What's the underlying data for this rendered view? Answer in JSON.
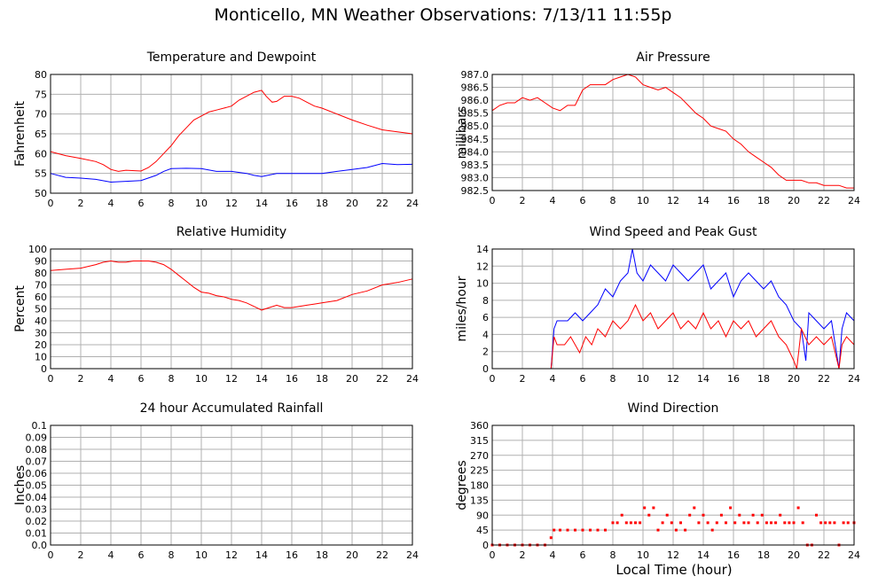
{
  "title": "Monticello, MN Weather Observations: 7/13/11 11:55p",
  "xaxis_label": "Local Time (hour)",
  "chart_data": [
    {
      "id": "temp",
      "type": "line",
      "title": "Temperature and Dewpoint",
      "ylabel": "Fahrenheit",
      "xlabel": "",
      "xlim": [
        0,
        24
      ],
      "ylim": [
        50,
        80
      ],
      "xticks": [
        "0",
        "2",
        "4",
        "6",
        "8",
        "10",
        "12",
        "14",
        "16",
        "18",
        "20",
        "22",
        "24"
      ],
      "yticks": [
        "50",
        "55",
        "60",
        "65",
        "70",
        "75",
        "80"
      ],
      "grid": true,
      "series": [
        {
          "color": "#ff0000",
          "x": [
            0,
            1,
            2,
            3,
            3.5,
            4,
            4.5,
            5,
            6,
            6.5,
            7,
            7.5,
            8,
            8.5,
            9,
            9.5,
            10,
            10.5,
            11,
            11.5,
            12,
            12.5,
            13,
            13.5,
            14,
            14.3,
            14.7,
            15,
            15.5,
            16,
            16.5,
            17,
            17.5,
            18,
            19,
            20,
            21,
            22,
            23,
            24
          ],
          "y": [
            60.5,
            59.5,
            58.8,
            58,
            57.2,
            56.0,
            55.5,
            55.8,
            55.6,
            56.5,
            58,
            60,
            62,
            64.5,
            66.5,
            68.5,
            69.5,
            70.5,
            71,
            71.5,
            72,
            73.5,
            74.5,
            75.5,
            76,
            74.5,
            73,
            73.2,
            74.5,
            74.5,
            74,
            73,
            72,
            71.5,
            70,
            68.5,
            67.2,
            66,
            65.5,
            65
          ]
        },
        {
          "color": "#0000ff",
          "x": [
            0,
            1,
            2,
            3,
            4,
            5,
            6,
            7,
            7.5,
            8,
            9,
            10,
            11,
            12,
            13,
            13.5,
            14,
            15,
            16,
            17,
            18,
            19,
            20,
            21,
            22,
            23,
            24
          ],
          "y": [
            55,
            54,
            53.8,
            53.5,
            52.8,
            53,
            53.2,
            54.5,
            55.5,
            56.2,
            56.3,
            56.2,
            55.5,
            55.5,
            55,
            54.5,
            54.2,
            55,
            55,
            55,
            55,
            55.5,
            56,
            56.5,
            57.5,
            57.2,
            57.3
          ]
        }
      ]
    },
    {
      "id": "pressure",
      "type": "line",
      "title": "Air Pressure",
      "ylabel": "millibars",
      "xlabel": "",
      "xlim": [
        0,
        24
      ],
      "ylim": [
        982.5,
        987.0
      ],
      "xticks": [
        "0",
        "2",
        "4",
        "6",
        "8",
        "10",
        "12",
        "14",
        "16",
        "18",
        "20",
        "22",
        "24"
      ],
      "yticks": [
        "982.5",
        "983.0",
        "983.5",
        "984.0",
        "984.5",
        "985.0",
        "985.5",
        "986.0",
        "986.5",
        "987.0"
      ],
      "grid": true,
      "series": [
        {
          "color": "#ff0000",
          "x": [
            0,
            0.5,
            1,
            1.5,
            2,
            2.5,
            3,
            3.5,
            4,
            4.5,
            5,
            5.5,
            6,
            6.5,
            7,
            7.5,
            8,
            8.5,
            9,
            9.5,
            10,
            10.5,
            11,
            11.5,
            12,
            12.5,
            13,
            13.5,
            14,
            14.5,
            15,
            15.5,
            16,
            16.5,
            17,
            17.5,
            18,
            18.5,
            19,
            19.5,
            20,
            20.5,
            21,
            21.5,
            22,
            22.5,
            23,
            23.5,
            24
          ],
          "y": [
            985.6,
            985.8,
            985.9,
            985.9,
            986.1,
            986.0,
            986.1,
            985.9,
            985.7,
            985.6,
            985.8,
            985.8,
            986.4,
            986.6,
            986.6,
            986.6,
            986.8,
            986.9,
            987.0,
            986.9,
            986.6,
            986.5,
            986.4,
            986.5,
            986.3,
            986.1,
            985.8,
            985.5,
            985.3,
            985.0,
            984.9,
            984.8,
            984.5,
            984.3,
            984.0,
            983.8,
            983.6,
            983.4,
            983.1,
            982.9,
            982.9,
            982.9,
            982.8,
            982.8,
            982.7,
            982.7,
            982.7,
            982.6,
            982.6
          ]
        }
      ]
    },
    {
      "id": "humidity",
      "type": "line",
      "title": "Relative Humidity",
      "ylabel": "Percent",
      "xlabel": "",
      "xlim": [
        0,
        24
      ],
      "ylim": [
        0,
        100
      ],
      "xticks": [
        "0",
        "2",
        "4",
        "6",
        "8",
        "10",
        "12",
        "14",
        "16",
        "18",
        "20",
        "22",
        "24"
      ],
      "yticks": [
        "0",
        "10",
        "20",
        "30",
        "40",
        "50",
        "60",
        "70",
        "80",
        "90",
        "100"
      ],
      "grid": true,
      "series": [
        {
          "color": "#ff0000",
          "x": [
            0,
            1,
            2,
            3,
            3.5,
            4,
            4.5,
            5,
            5.5,
            6,
            6.5,
            7,
            7.5,
            8,
            8.5,
            9,
            9.5,
            10,
            10.5,
            11,
            11.5,
            12,
            12.5,
            13,
            13.5,
            14,
            14.5,
            15,
            15.5,
            16,
            16.5,
            17,
            17.5,
            18,
            19,
            20,
            21,
            22,
            23,
            24
          ],
          "y": [
            82,
            83,
            84,
            87,
            89,
            90,
            89,
            89,
            90,
            90,
            90,
            89,
            87,
            83,
            78,
            73,
            68,
            64,
            63,
            61,
            60,
            58,
            57,
            55,
            52,
            49,
            51,
            53,
            51,
            51,
            52,
            53,
            54,
            55,
            57,
            62,
            65,
            70,
            72,
            75
          ]
        }
      ]
    },
    {
      "id": "wind",
      "type": "line",
      "title": "Wind Speed and Peak Gust",
      "ylabel": "miles/hour",
      "xlabel": "",
      "xlim": [
        0,
        24
      ],
      "ylim": [
        0,
        15
      ],
      "xticks": [
        "0",
        "2",
        "4",
        "6",
        "8",
        "10",
        "12",
        "14",
        "16",
        "18",
        "20",
        "22",
        "24"
      ],
      "yticks": [
        "0",
        "2",
        "4",
        "6",
        "8",
        "10",
        "12",
        "14"
      ],
      "grid": true,
      "series": [
        {
          "color": "#0000ff",
          "x": [
            0,
            3.9,
            4.1,
            4.3,
            5,
            5.5,
            6,
            6.5,
            7,
            7.5,
            8,
            8.5,
            9,
            9.3,
            9.6,
            10,
            10.5,
            11,
            11.5,
            12,
            12.5,
            13,
            13.5,
            14,
            14.5,
            15,
            15.5,
            16,
            16.5,
            17,
            17.5,
            18,
            18.5,
            19,
            19.5,
            20,
            20.5,
            20.8,
            21,
            21.5,
            22,
            22.5,
            23,
            23.2,
            23.5,
            24
          ],
          "y": [
            0,
            0,
            5,
            6,
            6,
            7,
            6,
            7,
            8,
            10,
            9,
            11,
            12,
            15,
            12,
            11,
            13,
            12,
            11,
            13,
            12,
            11,
            12,
            13,
            10,
            11,
            12,
            9,
            11,
            12,
            11,
            10,
            11,
            9,
            8,
            6,
            5,
            1,
            7,
            6,
            5,
            6,
            0,
            5,
            7,
            6
          ]
        },
        {
          "color": "#ff0000",
          "x": [
            0,
            3.9,
            4.1,
            4.3,
            4.8,
            5.2,
            5.8,
            6.2,
            6.6,
            7,
            7.5,
            8,
            8.5,
            9,
            9.5,
            10,
            10.5,
            11,
            11.5,
            12,
            12.5,
            13,
            13.5,
            14,
            14.5,
            15,
            15.5,
            16,
            16.5,
            17,
            17.5,
            18,
            18.5,
            19,
            19.5,
            20,
            20.2,
            20.5,
            21,
            21.5,
            22,
            22.5,
            23,
            23.2,
            23.5,
            24
          ],
          "y": [
            0,
            0,
            4,
            3,
            3,
            4,
            2,
            4,
            3,
            5,
            4,
            6,
            5,
            6,
            8,
            6,
            7,
            5,
            6,
            7,
            5,
            6,
            5,
            7,
            5,
            6,
            4,
            6,
            5,
            6,
            4,
            5,
            6,
            4,
            3,
            1,
            0,
            5,
            3,
            4,
            3,
            4,
            0,
            3,
            4,
            3
          ]
        }
      ]
    },
    {
      "id": "rain",
      "type": "line",
      "title": "24 hour Accumulated Rainfall",
      "ylabel": "Inches",
      "xlabel": "",
      "xlim": [
        0,
        24
      ],
      "ylim": [
        0,
        0.1
      ],
      "xticks": [
        "0",
        "2",
        "4",
        "6",
        "8",
        "10",
        "12",
        "14",
        "16",
        "18",
        "20",
        "22",
        "24"
      ],
      "yticks": [
        "0.0",
        "0.01",
        "0.02",
        "0.03",
        "0.04",
        "0.05",
        "0.06",
        "0.07",
        "0.08",
        "0.09",
        "0.1"
      ],
      "grid": true,
      "series": [
        {
          "color": "#ff0000",
          "x": [
            0,
            24
          ],
          "y": [
            0,
            0
          ]
        }
      ]
    },
    {
      "id": "direction",
      "type": "scatter",
      "title": "Wind Direction",
      "ylabel": "degrees",
      "xlabel": "",
      "xlim": [
        0,
        24
      ],
      "ylim": [
        0,
        360
      ],
      "xticks": [
        "0",
        "2",
        "4",
        "6",
        "8",
        "10",
        "12",
        "14",
        "16",
        "18",
        "20",
        "22",
        "24"
      ],
      "yticks": [
        "0",
        "45",
        "90",
        "135",
        "180",
        "225",
        "270",
        "315",
        "360"
      ],
      "grid": true,
      "series": [
        {
          "color": "#ff0000",
          "x": [
            0,
            0.5,
            1,
            1.5,
            2,
            2.5,
            3,
            3.5,
            3.9,
            4.1,
            4.5,
            5,
            5.5,
            6,
            6.5,
            7,
            7.5,
            8,
            8.3,
            8.6,
            8.9,
            9.2,
            9.5,
            9.8,
            10.1,
            10.4,
            10.7,
            11,
            11.3,
            11.6,
            11.9,
            12.2,
            12.5,
            12.8,
            13.1,
            13.4,
            13.7,
            14,
            14.3,
            14.6,
            14.9,
            15.2,
            15.5,
            15.8,
            16.1,
            16.4,
            16.7,
            17,
            17.3,
            17.6,
            17.9,
            18.2,
            18.5,
            18.8,
            19.1,
            19.4,
            19.7,
            20,
            20.3,
            20.6,
            20.9,
            21.2,
            21.5,
            21.8,
            22.1,
            22.4,
            22.7,
            23,
            23.3,
            23.6,
            24
          ],
          "y": [
            0,
            0,
            0,
            0,
            0,
            0,
            0,
            0,
            22,
            45,
            45,
            45,
            45,
            45,
            45,
            45,
            45,
            67,
            67,
            90,
            67,
            67,
            67,
            67,
            112,
            90,
            112,
            45,
            67,
            90,
            67,
            45,
            67,
            45,
            90,
            112,
            67,
            90,
            67,
            45,
            67,
            90,
            67,
            112,
            67,
            90,
            67,
            67,
            90,
            67,
            90,
            67,
            67,
            67,
            90,
            67,
            67,
            67,
            112,
            67,
            0,
            0,
            90,
            67,
            67,
            67,
            67,
            0,
            67,
            67,
            67
          ]
        }
      ]
    }
  ]
}
